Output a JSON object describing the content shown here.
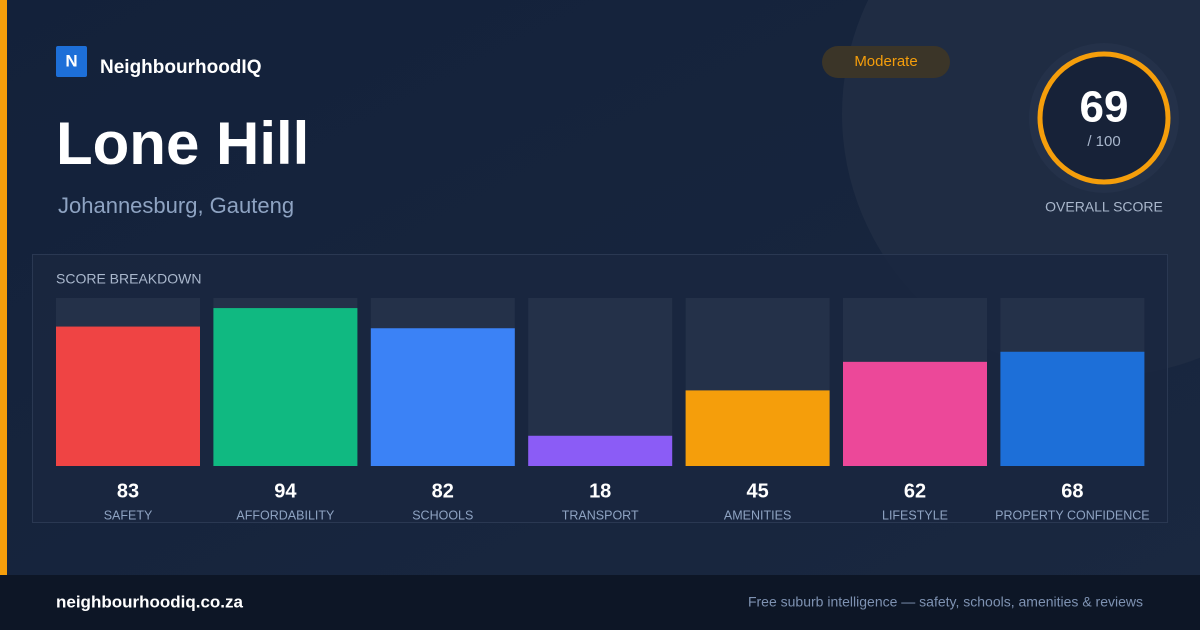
{
  "brand": {
    "logo_letter": "N",
    "name": "NeighbourhoodIQ"
  },
  "badge": "Moderate",
  "title": "Lone Hill",
  "subtitle": "Johannesburg, Gauteng",
  "overall_score": {
    "value": 69,
    "max_label": "/ 100",
    "caption": "OVERALL SCORE"
  },
  "chart_data": {
    "type": "bar",
    "title": "SCORE BREAKDOWN",
    "categories": [
      "SAFETY",
      "AFFORDABILITY",
      "SCHOOLS",
      "TRANSPORT",
      "AMENITIES",
      "LIFESTYLE",
      "PROPERTY CONFIDENCE"
    ],
    "values": [
      83,
      94,
      82,
      18,
      45,
      62,
      68
    ],
    "colors": [
      "#ef4444",
      "#10b981",
      "#3b82f6",
      "#8b5cf6",
      "#f59e0b",
      "#ec4899",
      "#1d6fd8"
    ],
    "ylim": [
      0,
      100
    ]
  },
  "footer": {
    "url": "neighbourhoodiq.co.za",
    "tagline": "Free suburb intelligence — safety, schools, amenities & reviews"
  }
}
